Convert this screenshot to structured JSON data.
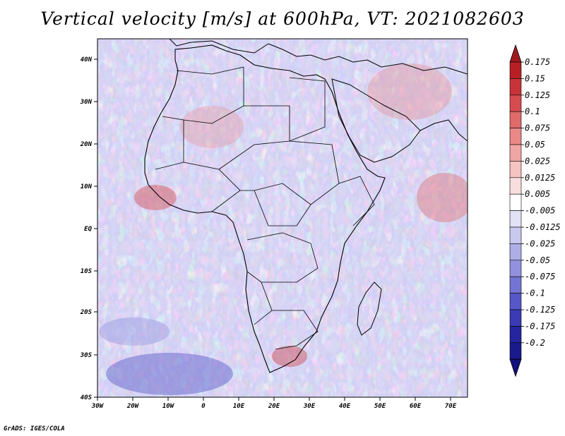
{
  "title": "Vertical velocity [m/s] at 600hPa, VT: 2021082603",
  "footer": "GrADS: IGES/COLA",
  "map": {
    "lon_labels": [
      "30W",
      "20W",
      "10W",
      "0",
      "10E",
      "20E",
      "30E",
      "40E",
      "50E",
      "60E",
      "70E"
    ],
    "lat_labels": [
      "40N",
      "30N",
      "20N",
      "10N",
      "EQ",
      "10S",
      "20S",
      "30S",
      "40S"
    ],
    "lon_range": [
      -30,
      75
    ],
    "lat_range": [
      -40,
      45
    ]
  },
  "colorbar": {
    "labels": [
      "0.175",
      "0.15",
      "0.125",
      "0.1",
      "0.075",
      "0.05",
      "0.025",
      "0.0125",
      "0.005",
      "-0.005",
      "-0.0125",
      "-0.025",
      "-0.05",
      "-0.075",
      "-0.1",
      "-0.125",
      "-0.175",
      "-0.2"
    ],
    "colors": [
      "#b71f24",
      "#c8333a",
      "#d64b50",
      "#e06a6a",
      "#e98887",
      "#f0a6a4",
      "#f5c3c1",
      "#f9dede",
      "#ffffff",
      "#e2e2f6",
      "#c9c9ef",
      "#aeaee7",
      "#9191df",
      "#7474d4",
      "#5757c7",
      "#3b3bb5",
      "#2525a0",
      "#1a1a8c"
    ],
    "top_color": "#9e1a1f",
    "bottom_color": "#10107a"
  }
}
